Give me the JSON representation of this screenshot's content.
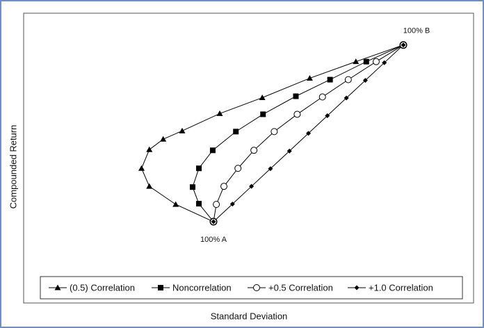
{
  "chart_data": {
    "type": "line",
    "xlabel": "Standard Deviation",
    "ylabel": "Compounded Return",
    "annotations": [
      {
        "text": "100% A",
        "x": 0,
        "y": 0
      },
      {
        "text": "100% B",
        "x": 100,
        "y": 100
      }
    ],
    "xlim": [
      -100,
      137
    ],
    "ylim": [
      -46,
      118
    ],
    "legend": "bottom",
    "series": [
      {
        "name": "(0.5) Correlation",
        "color": "#000000",
        "marker": "triangle",
        "x": [
          0,
          -19.9,
          -33.8,
          -37.9,
          -33.8,
          -26.5,
          -16.5,
          3.3,
          25.7,
          50.7,
          75.0,
          100
        ],
        "values": [
          0,
          9.8,
          20.0,
          30.2,
          40.8,
          46.7,
          51.4,
          61.2,
          70.2,
          81.2,
          90.6,
          100
        ]
      },
      {
        "name": "Noncorrelation",
        "color": "#000000",
        "marker": "square",
        "x": [
          0,
          -7.7,
          -11.0,
          -7.7,
          -0.4,
          11.8,
          26.1,
          43.4,
          61.4,
          80.5,
          100
        ],
        "values": [
          0,
          10.2,
          19.6,
          30.2,
          40.4,
          51.0,
          60.8,
          71.0,
          80.4,
          90.6,
          100
        ]
      },
      {
        "name": "+0.5 Correlation",
        "color": "#000000",
        "marker": "circle-open",
        "x": [
          0,
          1.5,
          5.5,
          12.9,
          21.3,
          32.0,
          44.1,
          57.4,
          71.0,
          85.7,
          100
        ],
        "values": [
          0,
          9.8,
          20.0,
          30.2,
          40.4,
          51.0,
          60.8,
          70.6,
          80.4,
          90.6,
          100
        ]
      },
      {
        "name": "+1.0 Correlation",
        "color": "#000000",
        "marker": "diamond",
        "x": [
          0,
          10,
          20,
          30,
          40,
          50,
          60,
          70,
          80,
          90,
          100
        ],
        "values": [
          0,
          10,
          20,
          30,
          40,
          50,
          60,
          70,
          80,
          90,
          100
        ]
      }
    ]
  }
}
